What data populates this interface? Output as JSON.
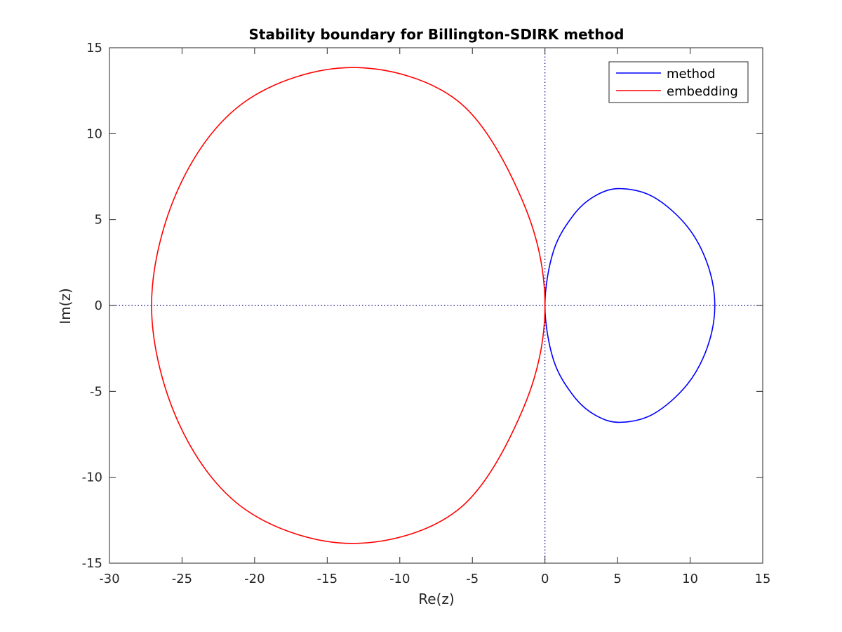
{
  "chart_data": {
    "type": "line",
    "title": "Stability boundary for Billington-SDIRK method",
    "xlabel": "Re(z)",
    "ylabel": "Im(z)",
    "xlim": [
      -30,
      15
    ],
    "ylim": [
      -15,
      15
    ],
    "xticks": [
      -30,
      -25,
      -20,
      -15,
      -10,
      -5,
      0,
      5,
      10,
      15
    ],
    "yticks": [
      -15,
      -10,
      -5,
      0,
      5,
      10,
      15
    ],
    "grid": false,
    "legend_position": "top-right",
    "series": [
      {
        "name": "method",
        "color": "#0000ff",
        "shape": "closed-curve",
        "x": [
          0,
          0.6,
          2.0,
          3.5,
          5.2,
          7.5,
          9.8,
          11.2,
          11.7,
          11.2,
          9.8,
          7.5,
          5.2,
          3.5,
          2.0,
          0.6,
          0
        ],
        "y": [
          0,
          3.2,
          5.3,
          6.4,
          6.8,
          6.3,
          4.6,
          2.4,
          0,
          -2.4,
          -4.6,
          -6.3,
          -6.8,
          -6.4,
          -5.3,
          -3.2,
          0
        ]
      },
      {
        "name": "embedding",
        "color": "#ff0000",
        "shape": "closed-curve",
        "x": [
          0,
          -1.5,
          -6.0,
          -13.3,
          -20.6,
          -25.2,
          -27.1,
          -25.2,
          -20.6,
          -13.3,
          -6.0,
          -1.5,
          0
        ],
        "y": [
          0,
          6.0,
          11.9,
          13.85,
          11.9,
          6.9,
          0,
          -6.9,
          -11.9,
          -13.85,
          -11.9,
          -6.0,
          0
        ]
      },
      {
        "name": "",
        "color": "#00007f",
        "style": "dotted",
        "x": [
          -30,
          15
        ],
        "y": [
          0,
          0
        ]
      },
      {
        "name": "",
        "color": "#00007f",
        "style": "dotted",
        "x": [
          0,
          0
        ],
        "y": [
          -15,
          15
        ]
      }
    ]
  }
}
